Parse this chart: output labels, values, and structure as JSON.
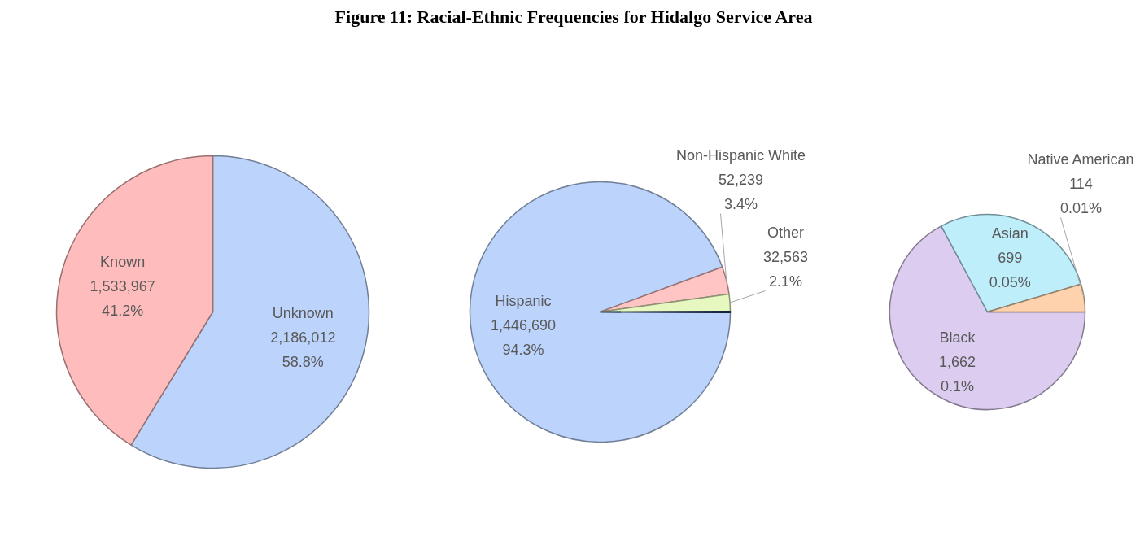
{
  "chart_data": [
    {
      "type": "pie",
      "title": "Figure 11: Racial-Ethnic Frequencies for Hidalgo Service Area",
      "categories": [
        "Unknown",
        "Known"
      ],
      "values": [
        2186012,
        1533967
      ],
      "colors": [
        "#bcd3fb",
        "#ffbcbc"
      ],
      "value_labels": [
        "2,186,012\n58.8%",
        "1,533,967\n41.2%"
      ]
    },
    {
      "type": "pie",
      "categories": [
        "Hispanic",
        "Non-Hispanic White",
        "Other",
        null
      ],
      "values": [
        1446690,
        52239,
        32563,
        2475
      ],
      "colors": [
        "#bcd3fb",
        "#ffc4c4",
        "#e6f7c0",
        "#1f3864"
      ],
      "value_labels": [
        "1,446,690\n94.3%",
        "52,239\n3.4%",
        "32,563\n2.1%",
        null
      ]
    },
    {
      "type": "pie",
      "categories": [
        "Black",
        "Asian",
        "Native American"
      ],
      "values": [
        1662,
        699,
        114
      ],
      "colors": [
        "#dccdf0",
        "#bdeefa",
        "#fdd2ad"
      ],
      "value_labels": [
        "1,662\n0.1%",
        "699\n0.05%",
        "114\n0.01%"
      ]
    }
  ]
}
